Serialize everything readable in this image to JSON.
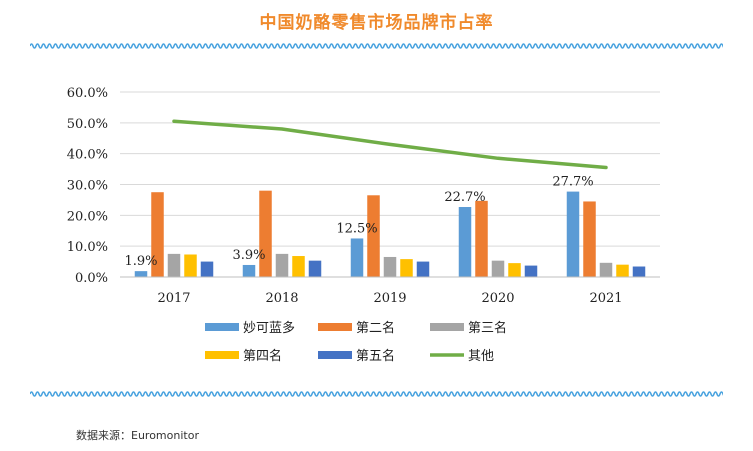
{
  "title": "中国奶酪零售市场品牌市占率",
  "source": "数据来源：Euromonitor",
  "colors": {
    "title": "#f08a2c",
    "wave": "#4aa3df",
    "axis_text": "#222222",
    "grid": "#d9d9d9"
  },
  "chart_data": {
    "type": "bar",
    "categories": [
      "2017",
      "2018",
      "2019",
      "2020",
      "2021"
    ],
    "ylim": [
      0,
      60
    ],
    "yticks": [
      "0.0%",
      "10.0%",
      "20.0%",
      "30.0%",
      "40.0%",
      "50.0%",
      "60.0%"
    ],
    "grid": true,
    "legend_position": "bottom",
    "series": [
      {
        "name": "妙可蓝多",
        "kind": "bar",
        "color": "#5b9bd5",
        "values": [
          1.9,
          3.9,
          12.5,
          22.7,
          27.7
        ]
      },
      {
        "name": "第二名",
        "kind": "bar",
        "color": "#ed7d31",
        "values": [
          27.5,
          28.0,
          26.5,
          24.7,
          24.5
        ]
      },
      {
        "name": "第三名",
        "kind": "bar",
        "color": "#a5a5a5",
        "values": [
          7.5,
          7.5,
          6.5,
          5.3,
          4.6
        ]
      },
      {
        "name": "第四名",
        "kind": "bar",
        "color": "#ffc000",
        "values": [
          7.3,
          6.8,
          5.8,
          4.5,
          4.0
        ]
      },
      {
        "name": "第五名",
        "kind": "bar",
        "color": "#4472c4",
        "values": [
          5.0,
          5.3,
          5.0,
          3.7,
          3.4
        ]
      },
      {
        "name": "其他",
        "kind": "line",
        "color": "#70ad47",
        "values": [
          50.5,
          48.0,
          43.0,
          38.5,
          35.5
        ]
      }
    ],
    "data_labels": [
      {
        "series": "妙可蓝多",
        "category": "2017",
        "text": "1.9%"
      },
      {
        "series": "妙可蓝多",
        "category": "2018",
        "text": "3.9%"
      },
      {
        "series": "妙可蓝多",
        "category": "2019",
        "text": "12.5%"
      },
      {
        "series": "妙可蓝多",
        "category": "2020",
        "text": "22.7%"
      },
      {
        "series": "妙可蓝多",
        "category": "2021",
        "text": "27.7%"
      }
    ]
  }
}
